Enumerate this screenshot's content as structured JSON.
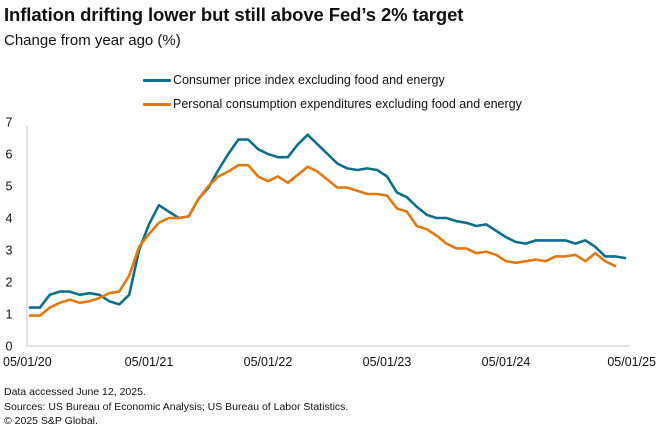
{
  "chart_data": {
    "type": "line",
    "title": "Inflation drifting lower but still above Fed’s 2% target",
    "subtitle": "Change from year ago (%)",
    "xlabel": "",
    "ylabel": "",
    "ylim": [
      0,
      7
    ],
    "yticks": [
      "0",
      "1",
      "2",
      "3",
      "4",
      "5",
      "6",
      "7"
    ],
    "xticks": [
      "05/01/20",
      "05/01/21",
      "05/01/22",
      "05/01/23",
      "05/01/24",
      "05/01/25"
    ],
    "x_start": "2020-05",
    "x_step": "monthly",
    "x_range_months": [
      0,
      60
    ],
    "grid": false,
    "legend_position": "top-center",
    "series": [
      {
        "name": "Consumer price index excluding food and energy",
        "color": "#0f6e8b",
        "values": [
          1.2,
          1.2,
          1.6,
          1.7,
          1.7,
          1.6,
          1.65,
          1.6,
          1.4,
          1.3,
          1.6,
          3.0,
          3.8,
          4.4,
          4.2,
          4.0,
          4.05,
          4.6,
          4.95,
          5.5,
          6.0,
          6.45,
          6.45,
          6.15,
          6.0,
          5.9,
          5.9,
          6.3,
          6.6,
          6.3,
          6.0,
          5.7,
          5.55,
          5.5,
          5.55,
          5.5,
          5.3,
          4.8,
          4.65,
          4.35,
          4.1,
          4.0,
          4.0,
          3.9,
          3.85,
          3.75,
          3.8,
          3.6,
          3.4,
          3.25,
          3.2,
          3.3,
          3.3,
          3.3,
          3.3,
          3.2,
          3.3,
          3.1,
          2.8,
          2.8,
          2.75
        ]
      },
      {
        "name": "Personal consumption expenditures excluding food and energy",
        "color": "#e07a10",
        "values": [
          0.95,
          0.95,
          1.2,
          1.35,
          1.45,
          1.35,
          1.4,
          1.5,
          1.65,
          1.7,
          2.2,
          3.1,
          3.5,
          3.85,
          4.0,
          4.0,
          4.05,
          4.6,
          5.0,
          5.3,
          5.45,
          5.65,
          5.65,
          5.3,
          5.15,
          5.3,
          5.1,
          5.35,
          5.6,
          5.45,
          5.2,
          4.95,
          4.95,
          4.85,
          4.75,
          4.75,
          4.7,
          4.3,
          4.2,
          3.75,
          3.65,
          3.45,
          3.2,
          3.05,
          3.05,
          2.9,
          2.95,
          2.85,
          2.65,
          2.6,
          2.65,
          2.7,
          2.65,
          2.8,
          2.8,
          2.85,
          2.65,
          2.9,
          2.65,
          2.5
        ]
      }
    ]
  },
  "footer": {
    "line1": "Data accessed June 12, 2025.",
    "line2": "Sources: US Bureau of Economic Analysis; US Bureau of Labor Statistics.",
    "line3": "© 2025 S&P Global."
  },
  "colors": {
    "axis": "#d9d9d9",
    "cpi": "#0f6e8b",
    "pce": "#e07a10"
  }
}
